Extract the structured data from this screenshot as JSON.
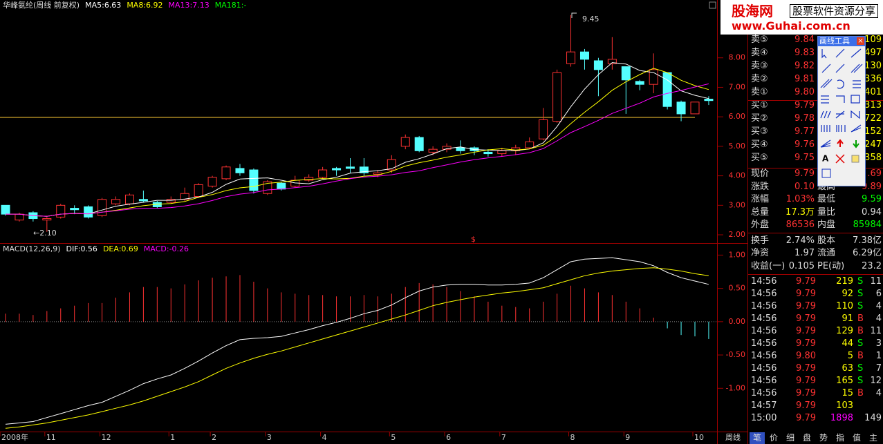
{
  "chart_data": [
    {
      "type": "candlestick",
      "title": "华峰氨纶(周线 前复权)",
      "indicators": [
        {
          "label": "MA5:6.63",
          "color": "#ffffff",
          "period": 5
        },
        {
          "label": "MA8:6.92",
          "color": "#ffff00",
          "period": 8
        },
        {
          "label": "MA13:7.13",
          "color": "#ff00ff",
          "period": 13
        },
        {
          "label": "MA181:-",
          "color": "#00ff00"
        }
      ],
      "open": [
        3.0,
        2.5,
        2.75,
        2.5,
        2.6,
        2.9,
        2.95,
        2.65,
        3.05,
        3.05,
        3.2,
        3.1,
        3.1,
        3.2,
        3.3,
        3.65,
        3.9,
        4.25,
        4.2,
        3.4,
        3.75,
        3.65,
        3.85,
        3.95,
        4.25,
        4.3,
        4.3,
        4.05,
        4.2,
        5.0,
        5.3,
        4.8,
        4.9,
        4.95,
        4.95,
        4.8,
        4.75,
        4.85,
        4.95,
        5.25,
        5.85,
        7.8,
        8.2,
        7.9,
        7.8,
        7.7,
        7.2,
        7.1,
        7.5,
        6.5,
        6.1,
        6.6
      ],
      "high": [
        3.0,
        2.75,
        2.8,
        2.6,
        3.05,
        3.0,
        3.0,
        3.25,
        3.3,
        3.4,
        3.5,
        3.15,
        3.3,
        3.6,
        3.75,
        4.0,
        4.35,
        4.4,
        4.25,
        3.85,
        3.8,
        4.0,
        4.05,
        4.3,
        4.3,
        4.6,
        4.6,
        4.2,
        4.7,
        5.4,
        5.35,
        5.0,
        5.1,
        5.2,
        5.0,
        4.9,
        4.95,
        5.05,
        5.3,
        6.3,
        7.6,
        9.45,
        8.3,
        8.0,
        8.7,
        7.7,
        7.25,
        8.15,
        7.5,
        6.55,
        6.5,
        6.7
      ],
      "low": [
        2.65,
        2.45,
        2.45,
        2.1,
        2.55,
        2.7,
        2.55,
        2.6,
        3.0,
        3.0,
        3.1,
        2.9,
        3.05,
        3.15,
        3.25,
        3.6,
        3.85,
        4.0,
        3.4,
        3.35,
        3.5,
        3.6,
        3.8,
        3.9,
        4.0,
        4.1,
        4.0,
        3.95,
        4.1,
        4.9,
        4.8,
        4.7,
        4.8,
        4.75,
        4.7,
        4.65,
        4.65,
        4.7,
        4.9,
        5.2,
        5.8,
        7.7,
        7.6,
        6.7,
        7.6,
        6.1,
        6.9,
        6.8,
        6.25,
        5.85,
        6.1,
        6.4
      ],
      "close": [
        2.7,
        2.7,
        2.55,
        2.55,
        3.0,
        2.85,
        2.6,
        3.2,
        3.2,
        3.35,
        3.15,
        2.95,
        3.2,
        3.4,
        3.7,
        3.95,
        4.3,
        4.1,
        3.5,
        3.8,
        3.55,
        3.85,
        3.95,
        4.2,
        4.2,
        4.25,
        4.1,
        4.1,
        4.55,
        5.3,
        4.85,
        4.9,
        5.0,
        4.85,
        4.85,
        4.75,
        4.85,
        4.95,
        5.15,
        5.9,
        7.5,
        8.2,
        7.95,
        7.6,
        7.95,
        7.25,
        7.1,
        7.6,
        6.35,
        6.1,
        6.5,
        6.55
      ],
      "up_color": "#ff3232",
      "down_color": "#54ffff",
      "reference_line": 5.98,
      "reference_color": "#ffcc33",
      "annotations": [
        "9.45",
        "←2.10",
        "$"
      ],
      "ylim": [
        1.72,
        9.96
      ],
      "yticks": [
        {
          "value": 2,
          "label": "2.00"
        },
        {
          "value": 3,
          "label": "3.00"
        },
        {
          "value": 4,
          "label": "4.00"
        },
        {
          "value": 5,
          "label": "5.00"
        },
        {
          "value": 6,
          "label": "6.00"
        },
        {
          "value": 7,
          "label": "7.00"
        },
        {
          "value": 8,
          "label": "8.00"
        }
      ]
    },
    {
      "type": "macd",
      "title": "MACD(12,26,9)",
      "indicators": [
        {
          "label": "DIF:0.56",
          "color": "#ffffff"
        },
        {
          "label": "DEA:0.69",
          "color": "#ffff00"
        },
        {
          "label": "MACD:-0.26",
          "color": "#ff00ff"
        }
      ],
      "categories": [
        "2008年",
        null,
        null,
        "11",
        null,
        null,
        null,
        "12",
        null,
        null,
        null,
        null,
        "1",
        null,
        null,
        "2",
        null,
        null,
        null,
        "3",
        null,
        null,
        null,
        "4",
        null,
        null,
        null,
        null,
        "5",
        null,
        null,
        null,
        "6",
        null,
        null,
        null,
        "7",
        null,
        null,
        null,
        null,
        "8",
        null,
        null,
        null,
        "9",
        null,
        null,
        null,
        null,
        "10",
        null
      ],
      "dif": [
        -1.54,
        -1.52,
        -1.5,
        -1.44,
        -1.38,
        -1.32,
        -1.26,
        -1.21,
        -1.12,
        -1.03,
        -0.93,
        -0.86,
        -0.8,
        -0.7,
        -0.59,
        -0.47,
        -0.36,
        -0.27,
        -0.25,
        -0.24,
        -0.22,
        -0.17,
        -0.12,
        -0.06,
        -0.01,
        0.05,
        0.12,
        0.17,
        0.25,
        0.36,
        0.46,
        0.52,
        0.55,
        0.56,
        0.56,
        0.55,
        0.55,
        0.56,
        0.58,
        0.66,
        0.78,
        0.9,
        0.94,
        0.95,
        0.96,
        0.93,
        0.9,
        0.84,
        0.74,
        0.66,
        0.61,
        0.56
      ],
      "dea": [
        -1.6,
        -1.58,
        -1.55,
        -1.52,
        -1.48,
        -1.44,
        -1.4,
        -1.35,
        -1.3,
        -1.25,
        -1.19,
        -1.12,
        -1.05,
        -0.98,
        -0.9,
        -0.8,
        -0.7,
        -0.62,
        -0.55,
        -0.49,
        -0.44,
        -0.38,
        -0.32,
        -0.26,
        -0.2,
        -0.14,
        -0.08,
        -0.02,
        0.04,
        0.1,
        0.17,
        0.24,
        0.29,
        0.33,
        0.37,
        0.4,
        0.43,
        0.45,
        0.48,
        0.51,
        0.57,
        0.63,
        0.69,
        0.73,
        0.76,
        0.78,
        0.8,
        0.81,
        0.79,
        0.76,
        0.72,
        0.69
      ],
      "dif_color": "#ffffff",
      "dea_color": "#ffff00",
      "up_color": "#ff3232",
      "down_color": "#54ffff",
      "ylim": [
        -1.65,
        1.17
      ],
      "yticks": [
        {
          "value": -1,
          "label": "-1.00"
        },
        {
          "value": -0.5,
          "label": "-0.50"
        },
        {
          "value": 0,
          "label": "0.00"
        },
        {
          "value": 0.5,
          "label": "0.50"
        },
        {
          "value": 1,
          "label": "1.00"
        }
      ]
    }
  ],
  "period_tab": "周线",
  "logo": {
    "name": "股海网",
    "slogan": "股票软件资源分享",
    "url": "www.Guhai.com.cn"
  },
  "toolbar": {
    "title": "画线工具",
    "text_tool": "A"
  },
  "order_book": [
    {
      "label": "卖⑤",
      "price": "9.84",
      "volume": "109"
    },
    {
      "label": "卖④",
      "price": "9.83",
      "volume": "497"
    },
    {
      "label": "卖③",
      "price": "9.82",
      "volume": "130"
    },
    {
      "label": "卖②",
      "price": "9.81",
      "volume": "336"
    },
    {
      "label": "卖①",
      "price": "9.80",
      "volume": "401"
    },
    {
      "label": "买①",
      "price": "9.79",
      "volume": "313"
    },
    {
      "label": "买②",
      "price": "9.78",
      "volume": "722"
    },
    {
      "label": "买③",
      "price": "9.77",
      "volume": "152"
    },
    {
      "label": "买④",
      "price": "9.76",
      "volume": "247"
    },
    {
      "label": "买⑤",
      "price": "9.75",
      "volume": "358"
    }
  ],
  "stats": [
    {
      "l1": "现价",
      "v1": "9.79",
      "v2": ".69"
    },
    {
      "l1": "涨跌",
      "v1": "0.10",
      "l2": "最高",
      "v2": "9.89"
    },
    {
      "l1": "涨幅",
      "v1": "1.03%",
      "l2": "最低",
      "v2": "9.59"
    },
    {
      "l1": "总量",
      "v1": "17.3万",
      "l2": "量比",
      "v2": "0.94"
    },
    {
      "l1": "外盘",
      "v1": "86536",
      "l2": "内盘",
      "v2": "85984"
    },
    {
      "l1": "换手",
      "v1": "2.74%",
      "l2": "股本",
      "v2": "7.38亿"
    },
    {
      "l1": "净资",
      "v1": "1.97",
      "l2": "流通",
      "v2": "6.29亿"
    },
    {
      "l1": "收益(一)",
      "v1": "0.105",
      "l2": "PE(动)",
      "v2": "23.2"
    }
  ],
  "trades": [
    {
      "time": "14:56",
      "price": "9.79",
      "volume": "219",
      "side": "S",
      "count": "11"
    },
    {
      "time": "14:56",
      "price": "9.79",
      "volume": "92",
      "side": "S",
      "count": "6"
    },
    {
      "time": "14:56",
      "price": "9.79",
      "volume": "110",
      "side": "S",
      "count": "4"
    },
    {
      "time": "14:56",
      "price": "9.79",
      "volume": "91",
      "side": "B",
      "count": "4"
    },
    {
      "time": "14:56",
      "price": "9.79",
      "volume": "129",
      "side": "B",
      "count": "11"
    },
    {
      "time": "14:56",
      "price": "9.79",
      "volume": "44",
      "side": "S",
      "count": "3"
    },
    {
      "time": "14:56",
      "price": "9.80",
      "volume": "5",
      "side": "B",
      "count": "1"
    },
    {
      "time": "14:56",
      "price": "9.79",
      "volume": "63",
      "side": "S",
      "count": "7"
    },
    {
      "time": "14:56",
      "price": "9.79",
      "volume": "165",
      "side": "S",
      "count": "12"
    },
    {
      "time": "14:56",
      "price": "9.79",
      "volume": "15",
      "side": "B",
      "count": "4"
    },
    {
      "time": "14:57",
      "price": "9.79",
      "volume": "103"
    },
    {
      "time": "15:00",
      "price": "9.79",
      "volume": "1898",
      "count": "149"
    }
  ],
  "panel_tabs": [
    "笔",
    "价",
    "细",
    "盘",
    "势",
    "指",
    "值",
    "主"
  ]
}
